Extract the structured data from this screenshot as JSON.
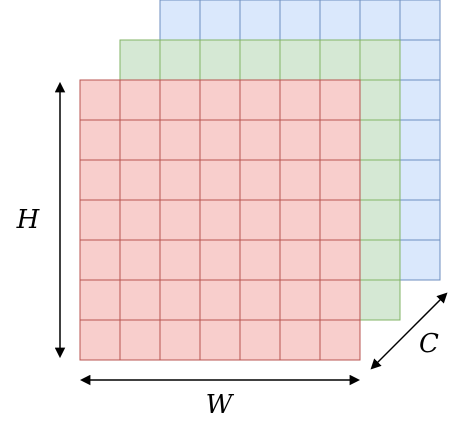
{
  "diagram": {
    "grid": {
      "rows": 7,
      "cols": 7
    },
    "layers": [
      {
        "name": "back-channel",
        "fill": "#dae8fc",
        "stroke": "#6c8ebf"
      },
      {
        "name": "middle-channel",
        "fill": "#d5e8d4",
        "stroke": "#82b366"
      },
      {
        "name": "front-channel",
        "fill": "#f8cecc",
        "stroke": "#b85450"
      }
    ],
    "labels": {
      "height": "H",
      "width": "W",
      "channels": "C"
    },
    "arrow_color": "#000000"
  }
}
